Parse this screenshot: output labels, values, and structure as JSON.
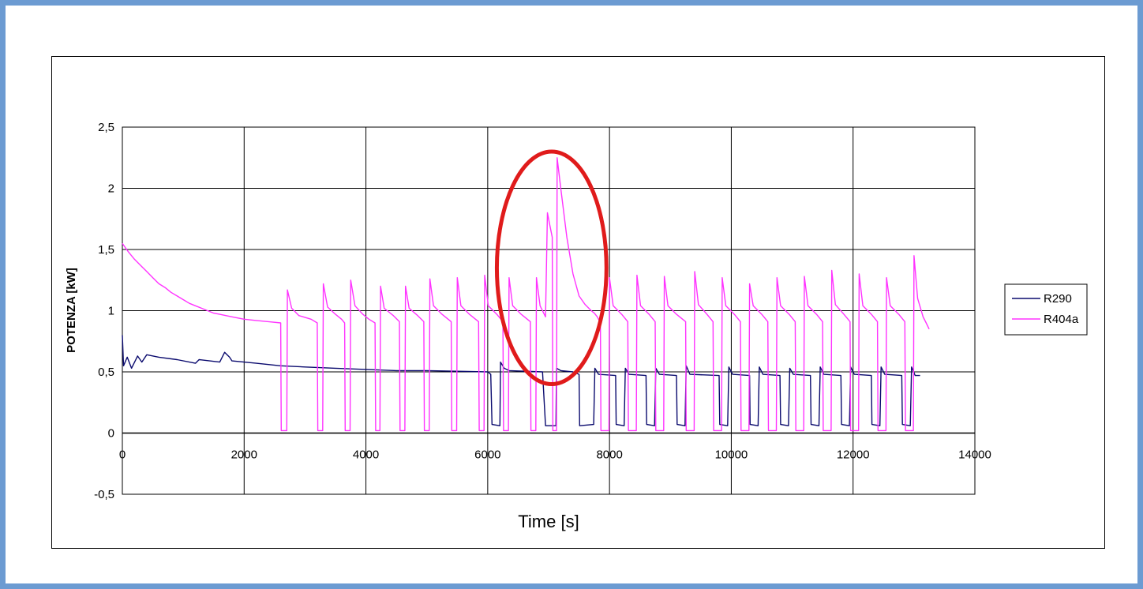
{
  "chart_data": {
    "type": "line",
    "xlabel": "Time [s]",
    "ylabel": "POTENZA [kW]",
    "xlim": [
      0,
      14000
    ],
    "ylim": [
      -0.5,
      2.5
    ],
    "x_ticks": [
      0,
      2000,
      4000,
      6000,
      8000,
      10000,
      12000,
      14000
    ],
    "x_tick_labels": [
      "0",
      "2000",
      "4000",
      "6000",
      "8000",
      "10000",
      "12000",
      "14000"
    ],
    "y_ticks": [
      -0.5,
      0,
      0.5,
      1,
      1.5,
      2,
      2.5
    ],
    "y_tick_labels": [
      "-0,5",
      "0",
      "0,5",
      "1",
      "1,5",
      "2",
      "2,5"
    ],
    "grid": true,
    "legend_position": "right",
    "highlight_ellipse": {
      "center_x": 7050,
      "center_y": 1.35,
      "radius_x": 900,
      "radius_y": 0.95,
      "color": "#e01b1b"
    },
    "series": [
      {
        "name": "R290",
        "color": "#0a0a6e",
        "points": [
          [
            0,
            0.8
          ],
          [
            20,
            0.55
          ],
          [
            80,
            0.62
          ],
          [
            150,
            0.53
          ],
          [
            250,
            0.63
          ],
          [
            320,
            0.58
          ],
          [
            400,
            0.64
          ],
          [
            600,
            0.62
          ],
          [
            900,
            0.6
          ],
          [
            1200,
            0.57
          ],
          [
            1260,
            0.6
          ],
          [
            1600,
            0.58
          ],
          [
            1680,
            0.66
          ],
          [
            1760,
            0.62
          ],
          [
            1800,
            0.59
          ],
          [
            2200,
            0.57
          ],
          [
            2600,
            0.55
          ],
          [
            3000,
            0.54
          ],
          [
            3500,
            0.53
          ],
          [
            4000,
            0.52
          ],
          [
            4500,
            0.51
          ],
          [
            5000,
            0.51
          ],
          [
            5500,
            0.505
          ],
          [
            6000,
            0.5
          ],
          [
            6050,
            0.48
          ],
          [
            6070,
            0.07
          ],
          [
            6200,
            0.06
          ],
          [
            6210,
            0.58
          ],
          [
            6270,
            0.53
          ],
          [
            6350,
            0.51
          ],
          [
            6900,
            0.5
          ],
          [
            6950,
            0.06
          ],
          [
            7120,
            0.06
          ],
          [
            7130,
            0.53
          ],
          [
            7200,
            0.51
          ],
          [
            7400,
            0.5
          ],
          [
            7500,
            0.48
          ],
          [
            7510,
            0.06
          ],
          [
            7740,
            0.07
          ],
          [
            7760,
            0.53
          ],
          [
            7820,
            0.48
          ],
          [
            8100,
            0.47
          ],
          [
            8110,
            0.07
          ],
          [
            8240,
            0.06
          ],
          [
            8260,
            0.53
          ],
          [
            8320,
            0.48
          ],
          [
            8600,
            0.47
          ],
          [
            8610,
            0.07
          ],
          [
            8740,
            0.06
          ],
          [
            8760,
            0.53
          ],
          [
            8820,
            0.48
          ],
          [
            9100,
            0.47
          ],
          [
            9110,
            0.07
          ],
          [
            9240,
            0.06
          ],
          [
            9260,
            0.55
          ],
          [
            9320,
            0.48
          ],
          [
            9800,
            0.47
          ],
          [
            9810,
            0.07
          ],
          [
            9940,
            0.06
          ],
          [
            9960,
            0.54
          ],
          [
            10020,
            0.48
          ],
          [
            10300,
            0.47
          ],
          [
            10310,
            0.07
          ],
          [
            10440,
            0.06
          ],
          [
            10460,
            0.54
          ],
          [
            10520,
            0.48
          ],
          [
            10800,
            0.47
          ],
          [
            10810,
            0.07
          ],
          [
            10940,
            0.06
          ],
          [
            10960,
            0.53
          ],
          [
            11020,
            0.48
          ],
          [
            11300,
            0.47
          ],
          [
            11310,
            0.07
          ],
          [
            11440,
            0.06
          ],
          [
            11460,
            0.54
          ],
          [
            11520,
            0.48
          ],
          [
            11800,
            0.47
          ],
          [
            11810,
            0.07
          ],
          [
            11940,
            0.06
          ],
          [
            11960,
            0.54
          ],
          [
            12020,
            0.48
          ],
          [
            12300,
            0.47
          ],
          [
            12310,
            0.07
          ],
          [
            12440,
            0.06
          ],
          [
            12460,
            0.54
          ],
          [
            12520,
            0.48
          ],
          [
            12800,
            0.47
          ],
          [
            12810,
            0.07
          ],
          [
            12940,
            0.06
          ],
          [
            12960,
            0.54
          ],
          [
            13020,
            0.47
          ],
          [
            13100,
            0.47
          ]
        ]
      },
      {
        "name": "R404a",
        "color": "#ff33ff",
        "points": [
          [
            0,
            1.55
          ],
          [
            100,
            1.48
          ],
          [
            200,
            1.42
          ],
          [
            300,
            1.37
          ],
          [
            400,
            1.32
          ],
          [
            500,
            1.27
          ],
          [
            600,
            1.22
          ],
          [
            700,
            1.19
          ],
          [
            800,
            1.15
          ],
          [
            900,
            1.12
          ],
          [
            1000,
            1.09
          ],
          [
            1100,
            1.06
          ],
          [
            1200,
            1.04
          ],
          [
            1300,
            1.02
          ],
          [
            1400,
            1.0
          ],
          [
            1500,
            0.98
          ],
          [
            1600,
            0.97
          ],
          [
            1700,
            0.96
          ],
          [
            1800,
            0.95
          ],
          [
            2000,
            0.93
          ],
          [
            2200,
            0.92
          ],
          [
            2400,
            0.91
          ],
          [
            2600,
            0.9
          ],
          [
            2610,
            0.02
          ],
          [
            2700,
            0.02
          ],
          [
            2710,
            1.17
          ],
          [
            2780,
            1.02
          ],
          [
            2900,
            0.96
          ],
          [
            3100,
            0.93
          ],
          [
            3200,
            0.9
          ],
          [
            3210,
            0.02
          ],
          [
            3290,
            0.02
          ],
          [
            3300,
            1.22
          ],
          [
            3370,
            1.03
          ],
          [
            3500,
            0.97
          ],
          [
            3600,
            0.93
          ],
          [
            3650,
            0.9
          ],
          [
            3660,
            0.02
          ],
          [
            3740,
            0.02
          ],
          [
            3750,
            1.25
          ],
          [
            3820,
            1.04
          ],
          [
            3950,
            0.97
          ],
          [
            4050,
            0.93
          ],
          [
            4150,
            0.9
          ],
          [
            4160,
            0.02
          ],
          [
            4230,
            0.02
          ],
          [
            4240,
            1.2
          ],
          [
            4300,
            1.02
          ],
          [
            4450,
            0.96
          ],
          [
            4550,
            0.91
          ],
          [
            4560,
            0.02
          ],
          [
            4640,
            0.02
          ],
          [
            4650,
            1.2
          ],
          [
            4710,
            1.02
          ],
          [
            4850,
            0.96
          ],
          [
            4950,
            0.91
          ],
          [
            4960,
            0.02
          ],
          [
            5040,
            0.02
          ],
          [
            5050,
            1.26
          ],
          [
            5110,
            1.04
          ],
          [
            5250,
            0.97
          ],
          [
            5400,
            0.91
          ],
          [
            5410,
            0.02
          ],
          [
            5490,
            0.02
          ],
          [
            5500,
            1.27
          ],
          [
            5560,
            1.04
          ],
          [
            5700,
            0.97
          ],
          [
            5850,
            0.91
          ],
          [
            5860,
            0.02
          ],
          [
            5940,
            0.02
          ],
          [
            5950,
            1.29
          ],
          [
            6010,
            1.04
          ],
          [
            6150,
            0.97
          ],
          [
            6250,
            0.91
          ],
          [
            6260,
            0.02
          ],
          [
            6340,
            0.02
          ],
          [
            6350,
            1.27
          ],
          [
            6410,
            1.04
          ],
          [
            6550,
            0.97
          ],
          [
            6700,
            0.91
          ],
          [
            6710,
            0.02
          ],
          [
            6790,
            0.02
          ],
          [
            6800,
            1.27
          ],
          [
            6860,
            1.04
          ],
          [
            6950,
            0.95
          ],
          [
            6980,
            1.8
          ],
          [
            7020,
            1.7
          ],
          [
            7060,
            1.6
          ],
          [
            7070,
            0.02
          ],
          [
            7130,
            0.02
          ],
          [
            7140,
            2.25
          ],
          [
            7200,
            2.0
          ],
          [
            7300,
            1.6
          ],
          [
            7400,
            1.3
          ],
          [
            7500,
            1.12
          ],
          [
            7600,
            1.05
          ],
          [
            7700,
            1.0
          ],
          [
            7750,
            0.98
          ],
          [
            7800,
            0.95
          ],
          [
            7850,
            0.9
          ],
          [
            7860,
            0.02
          ],
          [
            7990,
            0.02
          ],
          [
            8000,
            1.27
          ],
          [
            8060,
            1.04
          ],
          [
            8200,
            0.97
          ],
          [
            8300,
            0.91
          ],
          [
            8310,
            0.02
          ],
          [
            8440,
            0.02
          ],
          [
            8450,
            1.29
          ],
          [
            8510,
            1.04
          ],
          [
            8650,
            0.97
          ],
          [
            8750,
            0.91
          ],
          [
            8760,
            0.02
          ],
          [
            8890,
            0.02
          ],
          [
            8900,
            1.28
          ],
          [
            8960,
            1.04
          ],
          [
            9100,
            0.97
          ],
          [
            9250,
            0.91
          ],
          [
            9260,
            0.02
          ],
          [
            9390,
            0.02
          ],
          [
            9400,
            1.32
          ],
          [
            9460,
            1.05
          ],
          [
            9600,
            0.97
          ],
          [
            9700,
            0.91
          ],
          [
            9710,
            0.02
          ],
          [
            9840,
            0.02
          ],
          [
            9850,
            1.27
          ],
          [
            9910,
            1.04
          ],
          [
            10050,
            0.97
          ],
          [
            10150,
            0.91
          ],
          [
            10160,
            0.02
          ],
          [
            10290,
            0.02
          ],
          [
            10300,
            1.22
          ],
          [
            10360,
            1.04
          ],
          [
            10500,
            0.97
          ],
          [
            10600,
            0.91
          ],
          [
            10610,
            0.02
          ],
          [
            10740,
            0.02
          ],
          [
            10750,
            1.27
          ],
          [
            10810,
            1.04
          ],
          [
            10950,
            0.97
          ],
          [
            11050,
            0.91
          ],
          [
            11060,
            0.02
          ],
          [
            11190,
            0.02
          ],
          [
            11200,
            1.28
          ],
          [
            11260,
            1.04
          ],
          [
            11400,
            0.97
          ],
          [
            11500,
            0.91
          ],
          [
            11510,
            0.02
          ],
          [
            11640,
            0.02
          ],
          [
            11650,
            1.33
          ],
          [
            11710,
            1.05
          ],
          [
            11850,
            0.97
          ],
          [
            11950,
            0.91
          ],
          [
            11960,
            0.02
          ],
          [
            12090,
            0.02
          ],
          [
            12100,
            1.3
          ],
          [
            12160,
            1.04
          ],
          [
            12300,
            0.97
          ],
          [
            12400,
            0.91
          ],
          [
            12410,
            0.02
          ],
          [
            12540,
            0.02
          ],
          [
            12550,
            1.27
          ],
          [
            12610,
            1.04
          ],
          [
            12750,
            0.97
          ],
          [
            12850,
            0.91
          ],
          [
            12860,
            0.02
          ],
          [
            12990,
            0.02
          ],
          [
            13000,
            1.45
          ],
          [
            13060,
            1.1
          ],
          [
            13150,
            0.95
          ],
          [
            13200,
            0.9
          ],
          [
            13250,
            0.85
          ]
        ]
      }
    ]
  }
}
